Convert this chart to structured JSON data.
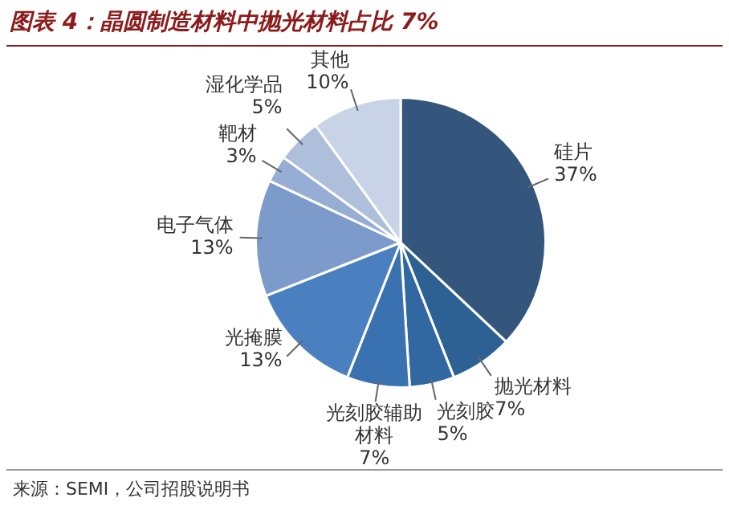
{
  "chart_data": {
    "type": "pie",
    "title": "图表 4：晶圆制造材料中抛光材料占比 7%",
    "categories": [
      "硅片",
      "抛光材料",
      "光刻胶",
      "光刻胶辅助材料",
      "光掩膜",
      "电子气体",
      "靶材",
      "湿化学品",
      "其他"
    ],
    "values": [
      37,
      7,
      5,
      7,
      13,
      13,
      3,
      5,
      10
    ],
    "colors": [
      "#34567d",
      "#2e6193",
      "#3268a2",
      "#3a71b0",
      "#4a80c0",
      "#7c9bcb",
      "#97aed4",
      "#aebfdc",
      "#c8d3e7"
    ],
    "value_labels": [
      "37%",
      "7%",
      "5%",
      "7%",
      "13%",
      "13%",
      "3%",
      "5%",
      "10%"
    ],
    "legend": false,
    "annotations": [
      "来源：SEMI，公司招股说明书"
    ]
  }
}
